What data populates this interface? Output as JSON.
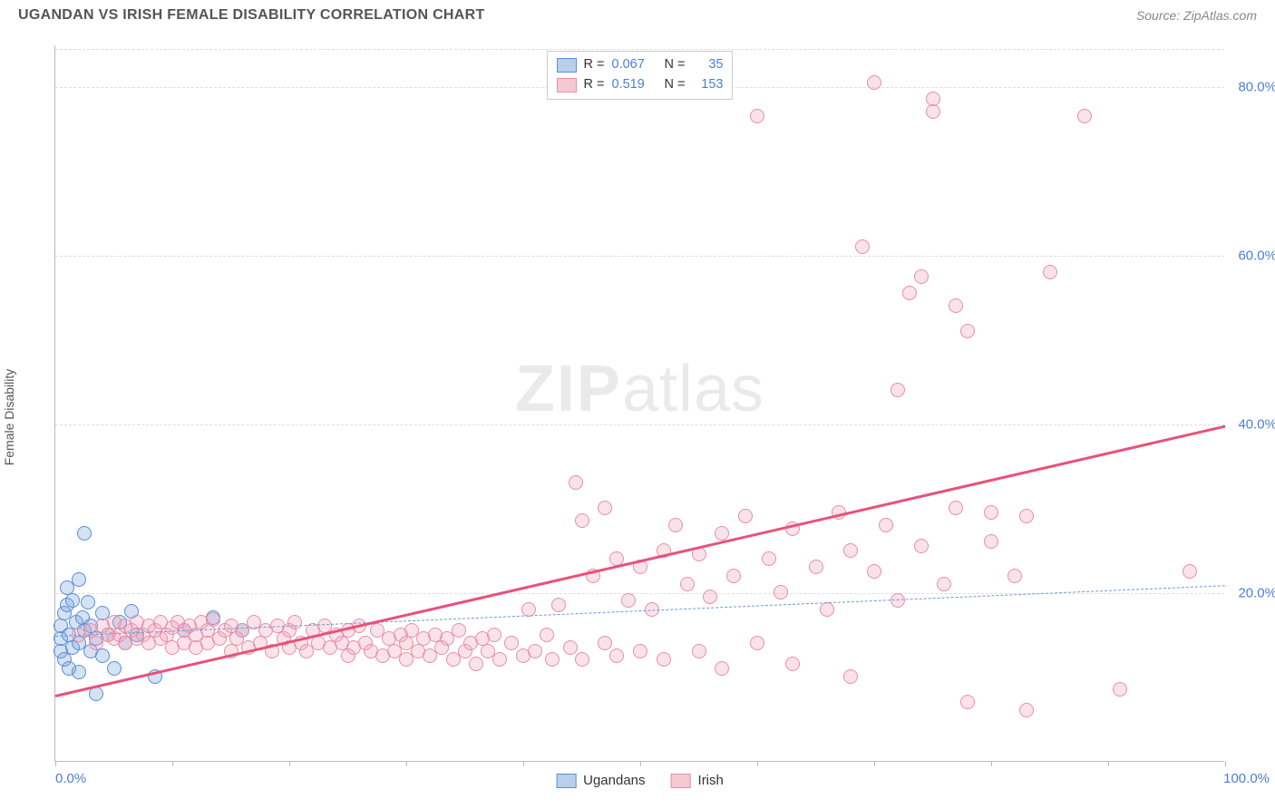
{
  "header": {
    "title": "UGANDAN VS IRISH FEMALE DISABILITY CORRELATION CHART",
    "source": "Source: ZipAtlas.com"
  },
  "ylabel": "Female Disability",
  "watermark": {
    "bold": "ZIP",
    "rest": "atlas"
  },
  "chart": {
    "type": "scatter",
    "xlim": [
      0,
      100
    ],
    "ylim": [
      0,
      85
    ],
    "background_color": "#ffffff",
    "grid_color": "#dddddd",
    "axis_color": "#bbbbbb",
    "tick_label_color": "#4a7fd6",
    "ytick_step": 20,
    "yticks": [
      20,
      40,
      60,
      80
    ],
    "xtick_marks": [
      0,
      10,
      20,
      30,
      40,
      50,
      60,
      70,
      80,
      90,
      100
    ],
    "xaxis_left_label": "0.0%",
    "xaxis_right_label": "100.0%",
    "marker_radius": 8,
    "marker_border_width": 1.2,
    "marker_fill_opacity": 0.28
  },
  "series": [
    {
      "name": "Ugandans",
      "color_border": "#5b8dd6",
      "color_fill": "rgba(120,165,220,0.32)",
      "legend_swatch_fill": "#b9d0ec",
      "R": "0.067",
      "N": "35",
      "trend": {
        "y_at_x0": 15.0,
        "y_at_x100": 21.0,
        "color": "#6a9ad8",
        "width": 1.4,
        "dashed": true
      },
      "points": [
        [
          0.5,
          14.5
        ],
        [
          0.5,
          16.0
        ],
        [
          0.5,
          13.0
        ],
        [
          0.8,
          17.5
        ],
        [
          0.8,
          12.0
        ],
        [
          1.0,
          20.5
        ],
        [
          1.0,
          18.5
        ],
        [
          1.2,
          15.0
        ],
        [
          1.2,
          11.0
        ],
        [
          1.5,
          19.0
        ],
        [
          1.5,
          13.5
        ],
        [
          1.8,
          16.5
        ],
        [
          2.0,
          21.5
        ],
        [
          2.0,
          14.0
        ],
        [
          2.0,
          10.5
        ],
        [
          2.3,
          17.0
        ],
        [
          2.5,
          27.0
        ],
        [
          2.5,
          15.5
        ],
        [
          2.8,
          18.8
        ],
        [
          3.0,
          13.0
        ],
        [
          3.0,
          16.0
        ],
        [
          3.5,
          14.5
        ],
        [
          3.5,
          8.0
        ],
        [
          4.0,
          17.5
        ],
        [
          4.0,
          12.5
        ],
        [
          4.5,
          15.0
        ],
        [
          5.0,
          11.0
        ],
        [
          5.5,
          16.5
        ],
        [
          6.0,
          14.0
        ],
        [
          6.5,
          17.8
        ],
        [
          7.0,
          15.0
        ],
        [
          8.5,
          10.0
        ],
        [
          11.0,
          15.5
        ],
        [
          13.5,
          17.0
        ],
        [
          16.0,
          15.5
        ]
      ]
    },
    {
      "name": "Irish",
      "color_border": "#e88fa6",
      "color_fill": "rgba(240,160,185,0.30)",
      "legend_swatch_fill": "#f6c8d4",
      "R": "0.519",
      "N": "153",
      "trend": {
        "y_at_x0": 8.0,
        "y_at_x100": 40.0,
        "color": "#e8527a",
        "width": 3.0,
        "dashed": false
      },
      "points": [
        [
          2.0,
          15.0
        ],
        [
          3.0,
          15.5
        ],
        [
          3.5,
          14.0
        ],
        [
          4.0,
          16.0
        ],
        [
          4.5,
          15.0
        ],
        [
          5.0,
          14.5
        ],
        [
          5.0,
          16.5
        ],
        [
          5.5,
          15.0
        ],
        [
          6.0,
          14.0
        ],
        [
          6.0,
          16.0
        ],
        [
          6.5,
          15.5
        ],
        [
          7.0,
          14.5
        ],
        [
          7.0,
          16.5
        ],
        [
          7.5,
          15.0
        ],
        [
          8.0,
          14.0
        ],
        [
          8.0,
          16.0
        ],
        [
          8.5,
          15.5
        ],
        [
          9.0,
          14.5
        ],
        [
          9.0,
          16.5
        ],
        [
          9.5,
          15.0
        ],
        [
          10.0,
          13.5
        ],
        [
          10.0,
          15.8
        ],
        [
          10.5,
          16.5
        ],
        [
          11.0,
          14.0
        ],
        [
          11.0,
          15.5
        ],
        [
          11.5,
          16.0
        ],
        [
          12.0,
          13.5
        ],
        [
          12.0,
          15.0
        ],
        [
          12.5,
          16.5
        ],
        [
          13.0,
          14.0
        ],
        [
          13.0,
          15.5
        ],
        [
          13.5,
          16.8
        ],
        [
          14.0,
          14.5
        ],
        [
          14.5,
          15.5
        ],
        [
          15.0,
          13.0
        ],
        [
          15.0,
          16.0
        ],
        [
          15.5,
          14.5
        ],
        [
          16.0,
          15.5
        ],
        [
          16.5,
          13.5
        ],
        [
          17.0,
          16.5
        ],
        [
          17.5,
          14.0
        ],
        [
          18.0,
          15.5
        ],
        [
          18.5,
          13.0
        ],
        [
          19.0,
          16.0
        ],
        [
          19.5,
          14.5
        ],
        [
          20.0,
          13.5
        ],
        [
          20.0,
          15.5
        ],
        [
          20.5,
          16.5
        ],
        [
          21.0,
          14.0
        ],
        [
          21.5,
          13.0
        ],
        [
          22.0,
          15.5
        ],
        [
          22.5,
          14.0
        ],
        [
          23.0,
          16.0
        ],
        [
          23.5,
          13.5
        ],
        [
          24.0,
          15.0
        ],
        [
          24.5,
          14.0
        ],
        [
          25.0,
          12.5
        ],
        [
          25.0,
          15.5
        ],
        [
          25.5,
          13.5
        ],
        [
          26.0,
          16.0
        ],
        [
          26.5,
          14.0
        ],
        [
          27.0,
          13.0
        ],
        [
          27.5,
          15.5
        ],
        [
          28.0,
          12.5
        ],
        [
          28.5,
          14.5
        ],
        [
          29.0,
          13.0
        ],
        [
          29.5,
          15.0
        ],
        [
          30.0,
          12.0
        ],
        [
          30.0,
          14.0
        ],
        [
          30.5,
          15.5
        ],
        [
          31.0,
          13.0
        ],
        [
          31.5,
          14.5
        ],
        [
          32.0,
          12.5
        ],
        [
          32.5,
          15.0
        ],
        [
          33.0,
          13.5
        ],
        [
          33.5,
          14.5
        ],
        [
          34.0,
          12.0
        ],
        [
          34.5,
          15.5
        ],
        [
          35.0,
          13.0
        ],
        [
          35.5,
          14.0
        ],
        [
          36.0,
          11.5
        ],
        [
          36.5,
          14.5
        ],
        [
          37.0,
          13.0
        ],
        [
          37.5,
          15.0
        ],
        [
          38.0,
          12.0
        ],
        [
          39.0,
          14.0
        ],
        [
          40.0,
          12.5
        ],
        [
          40.5,
          18.0
        ],
        [
          41.0,
          13.0
        ],
        [
          42.0,
          15.0
        ],
        [
          42.5,
          12.0
        ],
        [
          43.0,
          18.5
        ],
        [
          44.0,
          13.5
        ],
        [
          44.5,
          33.0
        ],
        [
          45.0,
          12.0
        ],
        [
          45.0,
          28.5
        ],
        [
          46.0,
          22.0
        ],
        [
          47.0,
          14.0
        ],
        [
          47.0,
          30.0
        ],
        [
          48.0,
          12.5
        ],
        [
          48.0,
          24.0
        ],
        [
          49.0,
          19.0
        ],
        [
          50.0,
          13.0
        ],
        [
          50.0,
          23.0
        ],
        [
          51.0,
          18.0
        ],
        [
          52.0,
          12.0
        ],
        [
          52.0,
          25.0
        ],
        [
          53.0,
          28.0
        ],
        [
          54.0,
          21.0
        ],
        [
          55.0,
          13.0
        ],
        [
          55.0,
          24.5
        ],
        [
          56.0,
          19.5
        ],
        [
          57.0,
          11.0
        ],
        [
          57.0,
          27.0
        ],
        [
          58.0,
          22.0
        ],
        [
          59.0,
          29.0
        ],
        [
          60.0,
          14.0
        ],
        [
          60.0,
          76.5
        ],
        [
          61.0,
          24.0
        ],
        [
          62.0,
          20.0
        ],
        [
          63.0,
          11.5
        ],
        [
          63.0,
          27.5
        ],
        [
          65.0,
          23.0
        ],
        [
          66.0,
          18.0
        ],
        [
          67.0,
          29.5
        ],
        [
          68.0,
          10.0
        ],
        [
          68.0,
          25.0
        ],
        [
          69.0,
          61.0
        ],
        [
          70.0,
          22.5
        ],
        [
          70.0,
          80.5
        ],
        [
          71.0,
          28.0
        ],
        [
          72.0,
          19.0
        ],
        [
          72.0,
          44.0
        ],
        [
          73.0,
          55.5
        ],
        [
          74.0,
          25.5
        ],
        [
          74.0,
          57.5
        ],
        [
          75.0,
          77.0
        ],
        [
          75.0,
          78.5
        ],
        [
          76.0,
          21.0
        ],
        [
          77.0,
          54.0
        ],
        [
          77.0,
          30.0
        ],
        [
          78.0,
          7.0
        ],
        [
          78.0,
          51.0
        ],
        [
          80.0,
          26.0
        ],
        [
          80.0,
          29.5
        ],
        [
          82.0,
          22.0
        ],
        [
          83.0,
          6.0
        ],
        [
          83.0,
          29.0
        ],
        [
          85.0,
          58.0
        ],
        [
          88.0,
          76.5
        ],
        [
          91.0,
          8.5
        ],
        [
          97.0,
          22.5
        ]
      ]
    }
  ],
  "legend_labels": {
    "r_label": "R =",
    "n_label": "N ="
  },
  "bottom_legend": {
    "items": [
      "Ugandans",
      "Irish"
    ]
  }
}
